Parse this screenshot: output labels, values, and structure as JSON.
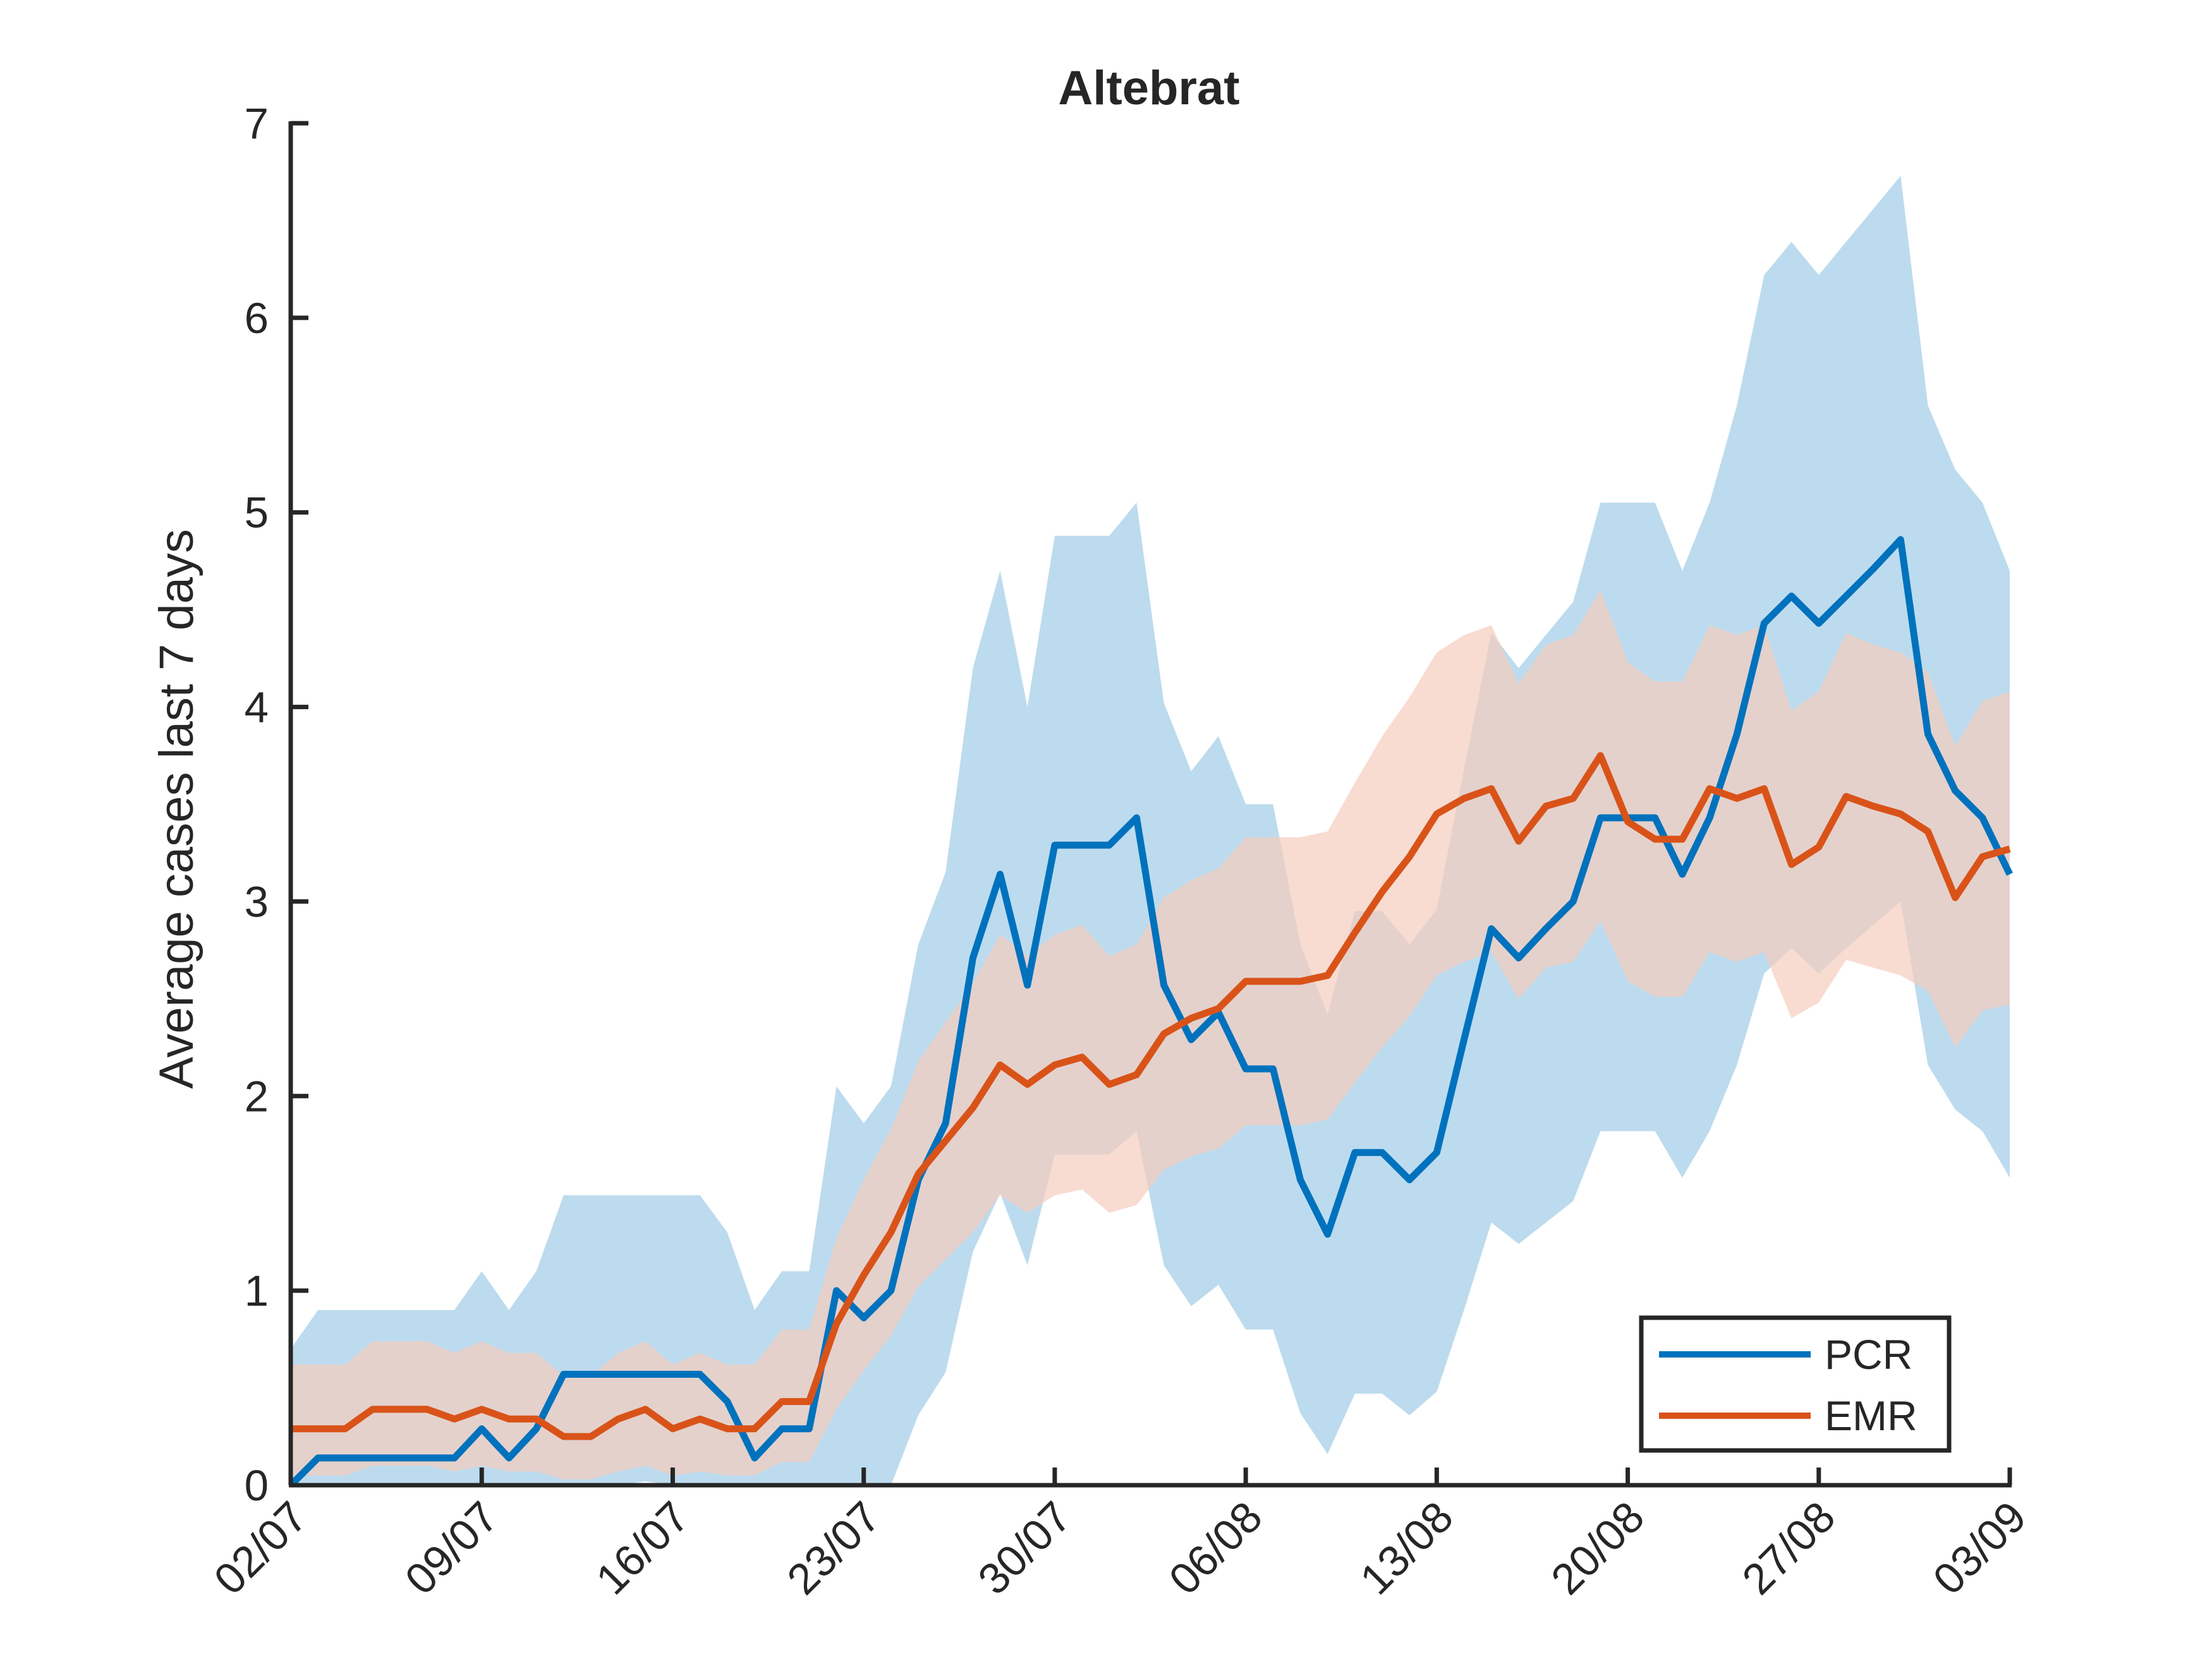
{
  "colors": {
    "pcr": "#0072BD",
    "emr": "#D95319",
    "pcr_band": "#BDDBEE",
    "emr_band": "#F5CDBD",
    "overlap_band": "#D3BFBA",
    "axis": "#262626",
    "legend_border": "#262626"
  },
  "chart_data": {
    "type": "line",
    "title": "Altebrat",
    "xlabel": "",
    "ylabel": "Average cases last 7 days",
    "ylim": [
      0,
      7
    ],
    "yticks": [
      0,
      1,
      2,
      3,
      4,
      5,
      6,
      7
    ],
    "xticks": [
      "02/07",
      "09/07",
      "16/07",
      "23/07",
      "30/07",
      "06/08",
      "13/08",
      "20/08",
      "27/08",
      "03/09"
    ],
    "x_range": [
      "02/07",
      "03/09"
    ],
    "grid": false,
    "legend_position": "bottom-right",
    "series": [
      {
        "name": "PCR",
        "color": "#0072BD",
        "x": [
          "02/07",
          "03/07",
          "04/07",
          "05/07",
          "06/07",
          "07/07",
          "08/07",
          "09/07",
          "10/07",
          "11/07",
          "12/07",
          "13/07",
          "14/07",
          "15/07",
          "16/07",
          "17/07",
          "18/07",
          "19/07",
          "20/07",
          "21/07",
          "22/07",
          "23/07",
          "24/07",
          "25/07",
          "26/07",
          "27/07",
          "28/07",
          "29/07",
          "30/07",
          "31/07",
          "01/08",
          "02/08",
          "03/08",
          "04/08",
          "05/08",
          "06/08",
          "07/08",
          "08/08",
          "09/08",
          "10/08",
          "11/08",
          "12/08",
          "13/08",
          "14/08",
          "15/08",
          "16/08",
          "17/08",
          "18/08",
          "19/08",
          "20/08",
          "21/08",
          "22/08",
          "23/08",
          "24/08",
          "25/08",
          "26/08",
          "27/08",
          "28/08",
          "29/08",
          "30/08",
          "31/08",
          "01/09",
          "02/09",
          "03/09"
        ],
        "values": [
          0,
          0.14,
          0.14,
          0.14,
          0.14,
          0.14,
          0.14,
          0.29,
          0.14,
          0.29,
          0.57,
          0.57,
          0.57,
          0.57,
          0.57,
          0.57,
          0.43,
          0.14,
          0.29,
          0.29,
          1.0,
          0.86,
          1.0,
          1.57,
          1.86,
          2.71,
          3.14,
          2.57,
          3.29,
          3.29,
          3.29,
          3.43,
          2.57,
          2.29,
          2.43,
          2.14,
          2.14,
          1.57,
          1.29,
          1.71,
          1.71,
          1.57,
          1.71,
          2.29,
          2.86,
          2.71,
          2.86,
          3.0,
          3.43,
          3.43,
          3.43,
          3.14,
          3.43,
          3.86,
          4.43,
          4.57,
          4.43,
          4.57,
          4.71,
          4.86,
          3.86,
          3.57,
          3.43,
          3.14
        ],
        "band_upper": [
          0.7,
          0.9,
          0.9,
          0.9,
          0.9,
          0.9,
          0.9,
          1.1,
          0.9,
          1.1,
          1.49,
          1.49,
          1.49,
          1.49,
          1.49,
          1.49,
          1.3,
          0.9,
          1.1,
          1.1,
          2.05,
          1.86,
          2.05,
          2.78,
          3.15,
          4.2,
          4.7,
          4.0,
          4.88,
          4.88,
          4.88,
          5.05,
          4.02,
          3.67,
          3.85,
          3.5,
          3.5,
          2.78,
          2.42,
          2.95,
          2.95,
          2.78,
          2.96,
          3.68,
          4.38,
          4.2,
          4.37,
          4.54,
          5.05,
          5.05,
          5.05,
          4.7,
          5.05,
          5.55,
          6.22,
          6.39,
          6.22,
          6.39,
          6.56,
          6.73,
          5.55,
          5.22,
          5.05,
          4.7
        ],
        "band_lower": [
          0,
          0,
          0.01,
          0.01,
          0.01,
          0.01,
          0.01,
          0,
          0,
          0,
          0,
          0,
          0,
          0.02,
          0,
          0,
          0,
          0,
          0,
          0,
          0,
          0,
          0,
          0.36,
          0.58,
          1.2,
          1.5,
          1.13,
          1.7,
          1.7,
          1.7,
          1.82,
          1.13,
          0.92,
          1.03,
          0.8,
          0.8,
          0.37,
          0.16,
          0.47,
          0.47,
          0.36,
          0.48,
          0.9,
          1.35,
          1.24,
          1.35,
          1.46,
          1.82,
          1.82,
          1.82,
          1.58,
          1.82,
          2.16,
          2.63,
          2.76,
          2.63,
          2.76,
          2.88,
          3.0,
          2.16,
          1.93,
          1.82,
          1.58
        ]
      },
      {
        "name": "EMR",
        "color": "#D95319",
        "x": [
          "02/07",
          "03/07",
          "04/07",
          "05/07",
          "06/07",
          "07/07",
          "08/07",
          "09/07",
          "10/07",
          "11/07",
          "12/07",
          "13/07",
          "14/07",
          "15/07",
          "16/07",
          "17/07",
          "18/07",
          "19/07",
          "20/07",
          "21/07",
          "22/07",
          "23/07",
          "24/07",
          "25/07",
          "26/07",
          "27/07",
          "28/07",
          "29/07",
          "30/07",
          "31/07",
          "01/08",
          "02/08",
          "03/08",
          "04/08",
          "05/08",
          "06/08",
          "07/08",
          "08/08",
          "09/08",
          "10/08",
          "11/08",
          "12/08",
          "13/08",
          "14/08",
          "15/08",
          "16/08",
          "17/08",
          "18/08",
          "19/08",
          "20/08",
          "21/08",
          "22/08",
          "23/08",
          "24/08",
          "25/08",
          "26/08",
          "27/08",
          "28/08",
          "29/08",
          "30/08",
          "31/08",
          "01/09",
          "02/09",
          "03/09"
        ],
        "values": [
          0.29,
          0.29,
          0.29,
          0.39,
          0.39,
          0.39,
          0.34,
          0.39,
          0.34,
          0.34,
          0.25,
          0.25,
          0.34,
          0.39,
          0.29,
          0.34,
          0.29,
          0.29,
          0.43,
          0.43,
          0.83,
          1.08,
          1.3,
          1.6,
          1.77,
          1.94,
          2.16,
          2.06,
          2.16,
          2.2,
          2.06,
          2.11,
          2.32,
          2.4,
          2.45,
          2.59,
          2.59,
          2.59,
          2.62,
          2.84,
          3.05,
          3.23,
          3.45,
          3.53,
          3.58,
          3.31,
          3.49,
          3.53,
          3.75,
          3.41,
          3.32,
          3.32,
          3.58,
          3.53,
          3.58,
          3.19,
          3.28,
          3.54,
          3.49,
          3.45,
          3.36,
          3.02,
          3.23,
          3.27
        ],
        "band_upper": [
          0.62,
          0.62,
          0.62,
          0.74,
          0.74,
          0.74,
          0.68,
          0.74,
          0.68,
          0.68,
          0.56,
          0.56,
          0.68,
          0.74,
          0.62,
          0.68,
          0.62,
          0.62,
          0.8,
          0.8,
          1.27,
          1.57,
          1.83,
          2.18,
          2.38,
          2.58,
          2.83,
          2.72,
          2.83,
          2.88,
          2.72,
          2.78,
          3.02,
          3.11,
          3.17,
          3.33,
          3.33,
          3.33,
          3.36,
          3.61,
          3.85,
          4.05,
          4.28,
          4.37,
          4.42,
          4.12,
          4.32,
          4.37,
          4.6,
          4.23,
          4.13,
          4.13,
          4.42,
          4.37,
          4.42,
          3.98,
          4.08,
          4.38,
          4.32,
          4.28,
          4.18,
          3.8,
          4.03,
          4.08
        ],
        "band_lower": [
          0.05,
          0.05,
          0.05,
          0.1,
          0.1,
          0.1,
          0.07,
          0.1,
          0.07,
          0.07,
          0.03,
          0.03,
          0.07,
          0.1,
          0.05,
          0.07,
          0.05,
          0.05,
          0.12,
          0.12,
          0.39,
          0.59,
          0.77,
          1.02,
          1.16,
          1.3,
          1.49,
          1.4,
          1.49,
          1.52,
          1.4,
          1.44,
          1.62,
          1.69,
          1.73,
          1.85,
          1.85,
          1.85,
          1.88,
          2.07,
          2.25,
          2.41,
          2.62,
          2.69,
          2.74,
          2.5,
          2.66,
          2.69,
          2.9,
          2.59,
          2.51,
          2.51,
          2.74,
          2.69,
          2.74,
          2.4,
          2.48,
          2.7,
          2.66,
          2.62,
          2.54,
          2.25,
          2.44,
          2.47
        ]
      }
    ]
  }
}
